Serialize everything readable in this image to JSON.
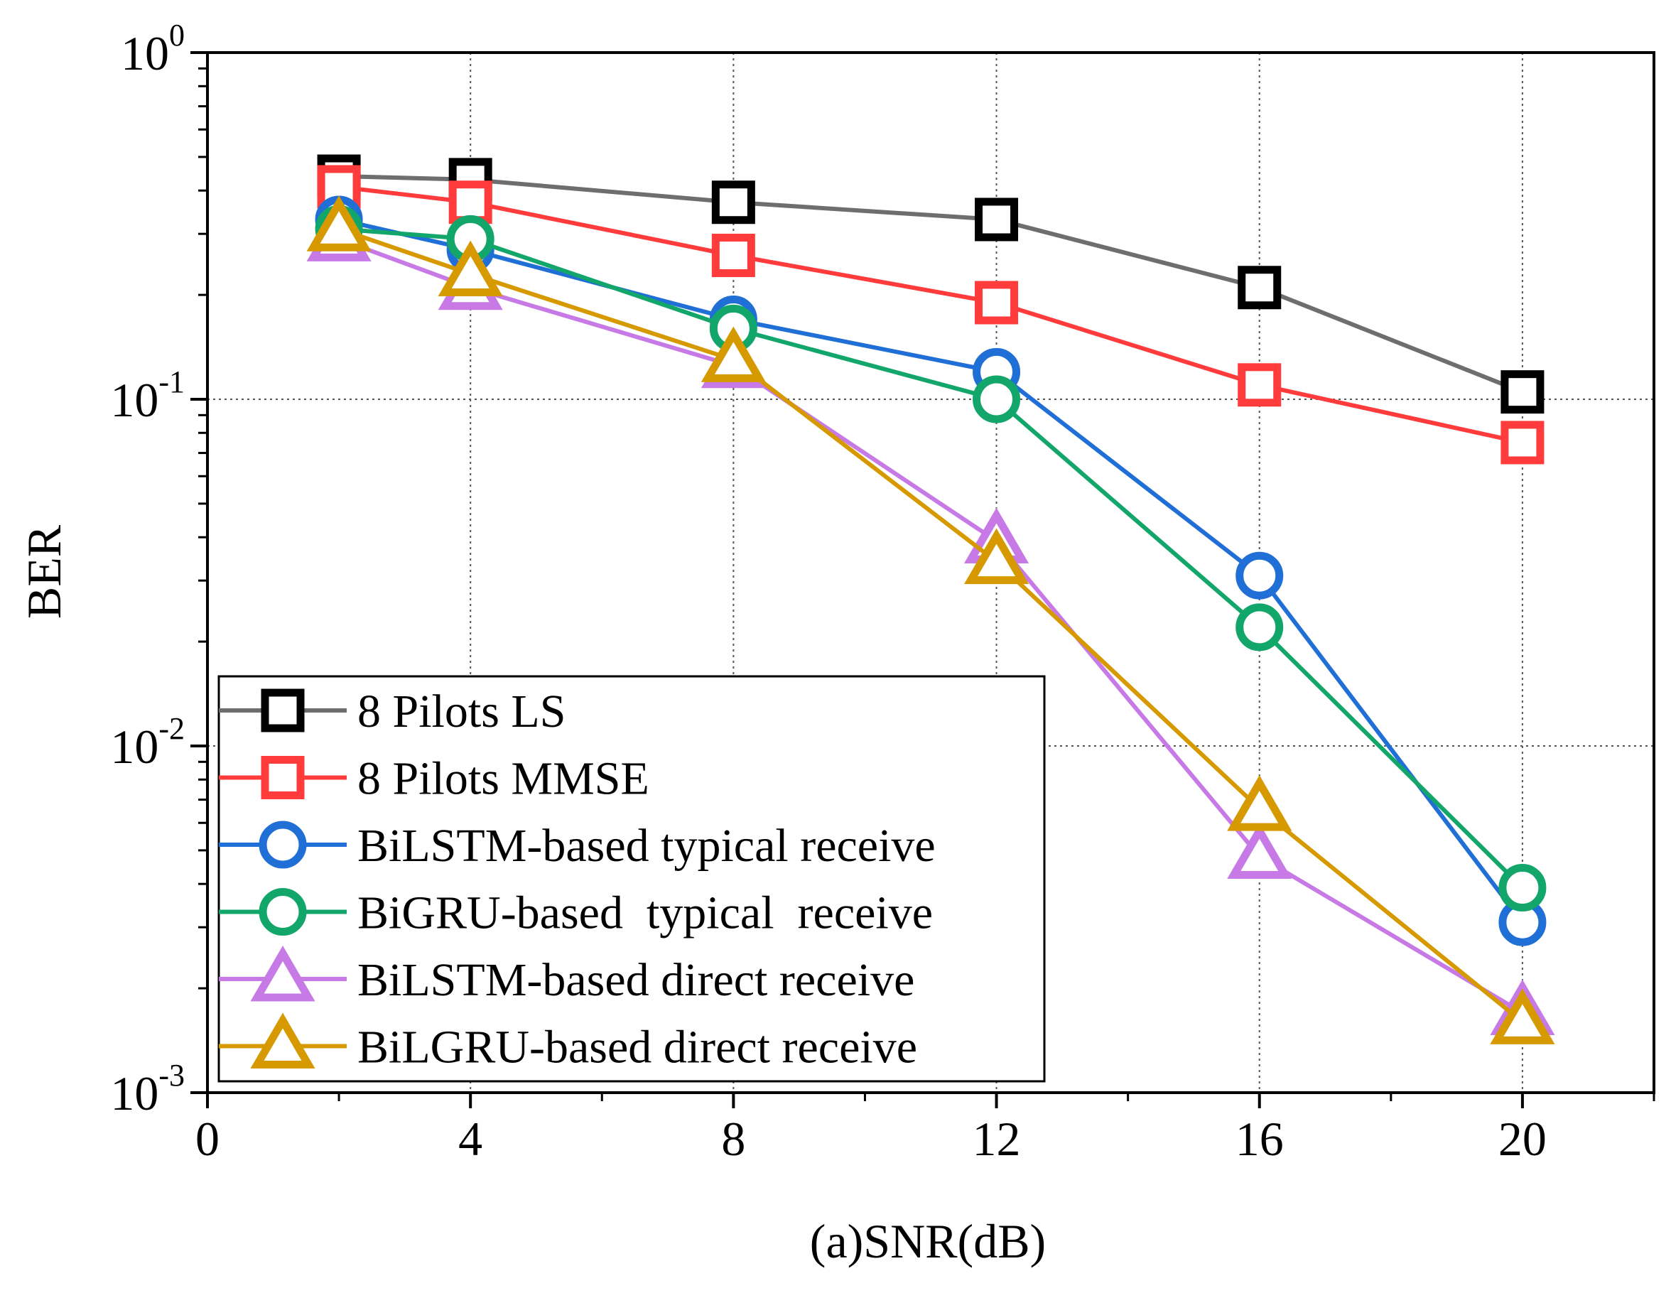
{
  "chart_data": {
    "type": "line",
    "title": "",
    "xlabel": "(a)SNR(dB)",
    "ylabel": "BER",
    "yscale": "log",
    "xlim": [
      0,
      22
    ],
    "ylim": [
      0.001,
      1
    ],
    "xticks": [
      0,
      4,
      8,
      12,
      16,
      20
    ],
    "xtick_labels": [
      "0",
      "4",
      "8",
      "12",
      "16",
      "20"
    ],
    "yticks": [
      {
        "value": 1,
        "base": "10",
        "exp": "0"
      },
      {
        "value": 0.1,
        "base": "10",
        "exp": "-1"
      },
      {
        "value": 0.01,
        "base": "10",
        "exp": "-2"
      },
      {
        "value": 0.001,
        "base": "10",
        "exp": "-3"
      }
    ],
    "grid": true,
    "legend_position": "bottom-left",
    "x": [
      2,
      4,
      8,
      12,
      16,
      20
    ],
    "series": [
      {
        "name": "8 Pilots LS",
        "color": "#6e6e6e",
        "marker_color": "#000000",
        "marker": "square",
        "values": [
          0.44,
          0.43,
          0.37,
          0.33,
          0.21,
          0.105
        ]
      },
      {
        "name": "8 Pilots MMSE",
        "color": "#ff3b3b",
        "marker_color": "#ff3b3b",
        "marker": "square",
        "values": [
          0.41,
          0.37,
          0.26,
          0.19,
          0.11,
          0.075
        ]
      },
      {
        "name": "BiLSTM-based typical receive",
        "color": "#1f6fd6",
        "marker_color": "#1f6fd6",
        "marker": "circle",
        "values": [
          0.33,
          0.27,
          0.17,
          0.12,
          0.031,
          0.0031
        ]
      },
      {
        "name": "BiGRU-based  typical  receive",
        "color": "#12a66a",
        "marker_color": "#12a66a",
        "marker": "circle",
        "values": [
          0.31,
          0.29,
          0.16,
          0.1,
          0.022,
          0.0039
        ]
      },
      {
        "name": "BiLSTM-based direct receive",
        "color": "#c77ae6",
        "marker_color": "#c77ae6",
        "marker": "triangle",
        "values": [
          0.29,
          0.21,
          0.125,
          0.039,
          0.0048,
          0.0017
        ]
      },
      {
        "name": "BiLGRU-based direct receive",
        "color": "#d69a00",
        "marker_color": "#d69a00",
        "marker": "triangle",
        "values": [
          0.31,
          0.23,
          0.13,
          0.034,
          0.0066,
          0.0016
        ]
      }
    ]
  }
}
